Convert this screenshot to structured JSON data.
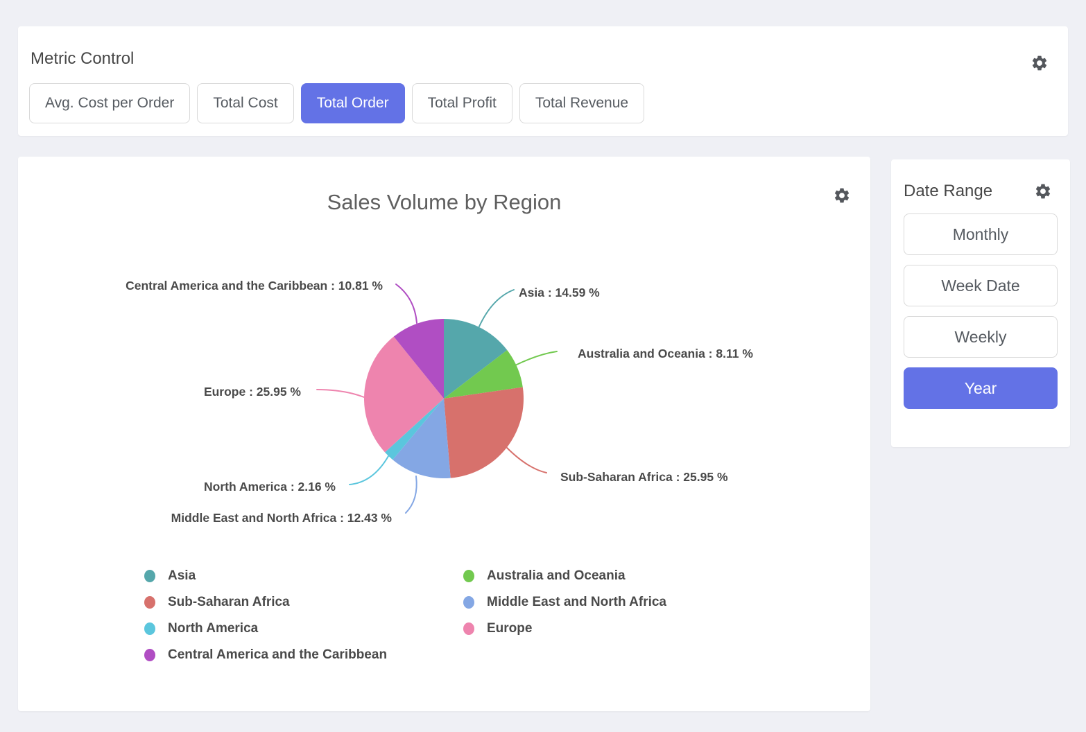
{
  "colors": {
    "accent": "#6372e6",
    "page_background": "#eff0f5",
    "panel_background": "#ffffff",
    "text_primary": "#474747",
    "text_label": "#4a4a4a",
    "gear_icon": "#54575c"
  },
  "icons": {
    "settings": "gear"
  },
  "metric_control": {
    "title": "Metric Control",
    "buttons": [
      {
        "label": "Avg. Cost per Order",
        "selected": false
      },
      {
        "label": "Total Cost",
        "selected": false
      },
      {
        "label": "Total Order",
        "selected": true
      },
      {
        "label": "Total Profit",
        "selected": false
      },
      {
        "label": "Total Revenue",
        "selected": false
      }
    ]
  },
  "date_range": {
    "title": "Date Range",
    "buttons": [
      {
        "label": "Monthly",
        "selected": false
      },
      {
        "label": "Week Date",
        "selected": false
      },
      {
        "label": "Weekly",
        "selected": false
      },
      {
        "label": "Year",
        "selected": true
      }
    ]
  },
  "chart_data": {
    "type": "pie",
    "title": "Sales Volume by Region",
    "value_unit": "%",
    "label_format": "{name} : {value} %",
    "legend_position": "bottom",
    "slices": [
      {
        "name": "Asia",
        "value": 14.59,
        "color": "#55a7ab"
      },
      {
        "name": "Australia and Oceania",
        "value": 8.11,
        "color": "#72c94f"
      },
      {
        "name": "Sub-Saharan Africa",
        "value": 25.95,
        "color": "#d7716c"
      },
      {
        "name": "Middle East and North Africa",
        "value": 12.43,
        "color": "#84a7e4"
      },
      {
        "name": "North America",
        "value": 2.16,
        "color": "#5bc6dd"
      },
      {
        "name": "Europe",
        "value": 25.95,
        "color": "#ee84ae"
      },
      {
        "name": "Central America and the Caribbean",
        "value": 10.81,
        "color": "#b04ec3"
      }
    ],
    "legend_columns": [
      [
        "Asia",
        "Sub-Saharan Africa",
        "North America",
        "Central America and the Caribbean"
      ],
      [
        "Australia and Oceania",
        "Middle East and North Africa",
        "Europe"
      ]
    ]
  }
}
